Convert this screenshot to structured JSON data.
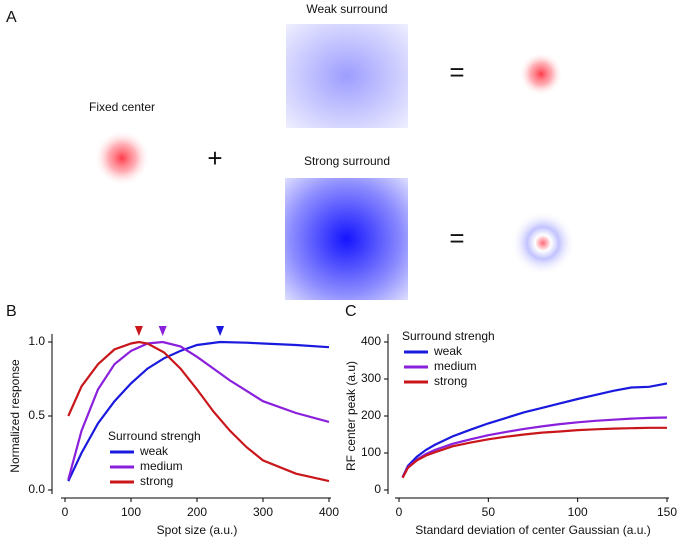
{
  "panel_a": {
    "label": "A",
    "center_label": "Fixed center",
    "weak_label": "Weak surround",
    "strong_label": "Strong surround",
    "plus": "+",
    "equals_weak": "=",
    "equals_strong": "="
  },
  "chart_data": [
    {
      "type": "line",
      "panel_label": "B",
      "xlabel": "Spot size (a.u.)",
      "ylabel": "Normalized response",
      "legend_title": "Surround strengh",
      "xlim": [
        0,
        400
      ],
      "xticks": [
        0,
        100,
        200,
        300,
        400
      ],
      "ylim": [
        0,
        1
      ],
      "yticks": [
        {
          "value": 0,
          "label": "0.0"
        },
        {
          "value": 0.5,
          "label": "0.5"
        },
        {
          "value": 1,
          "label": "1.0"
        }
      ],
      "series": [
        {
          "name": "weak",
          "color": "#1a1adf",
          "peak": 235,
          "x": [
            5,
            25,
            50,
            75,
            100,
            125,
            150,
            175,
            200,
            235,
            275,
            300,
            350,
            400
          ],
          "values": [
            0.06,
            0.25,
            0.45,
            0.6,
            0.72,
            0.82,
            0.89,
            0.94,
            0.98,
            1.0,
            0.995,
            0.99,
            0.98,
            0.965
          ]
        },
        {
          "name": "medium",
          "color": "#8a1fdc",
          "peak": 148,
          "x": [
            5,
            25,
            50,
            75,
            100,
            125,
            148,
            175,
            200,
            225,
            250,
            275,
            300,
            350,
            400
          ],
          "values": [
            0.07,
            0.4,
            0.68,
            0.85,
            0.94,
            0.99,
            1.0,
            0.97,
            0.9,
            0.82,
            0.74,
            0.67,
            0.6,
            0.52,
            0.46
          ]
        },
        {
          "name": "strong",
          "color": "#c8161b",
          "peak": 112,
          "x": [
            5,
            25,
            50,
            75,
            100,
            112,
            125,
            150,
            175,
            200,
            225,
            250,
            275,
            300,
            350,
            400
          ],
          "values": [
            0.5,
            0.7,
            0.85,
            0.95,
            0.99,
            1.0,
            0.99,
            0.93,
            0.82,
            0.68,
            0.53,
            0.4,
            0.29,
            0.2,
            0.11,
            0.06
          ]
        }
      ]
    },
    {
      "type": "line",
      "panel_label": "C",
      "xlabel": "Standard deviation of center Gaussian (a.u.)",
      "ylabel": "RF center peak (a.u)",
      "legend_title": "Surround strengh",
      "xlim": [
        0,
        150
      ],
      "xticks": [
        0,
        50,
        100,
        150
      ],
      "ylim": [
        0,
        400
      ],
      "yticks": [
        0,
        100,
        200,
        300,
        400
      ],
      "x": [
        2,
        5,
        10,
        15,
        20,
        30,
        40,
        50,
        60,
        70,
        80,
        90,
        100,
        110,
        120,
        130,
        140,
        150
      ],
      "series": [
        {
          "name": "weak",
          "color": "#1a1adf",
          "values": [
            35,
            65,
            90,
            108,
            122,
            145,
            163,
            180,
            195,
            210,
            222,
            234,
            246,
            257,
            268,
            277,
            279,
            288
          ]
        },
        {
          "name": "medium",
          "color": "#8a1fdc",
          "values": [
            35,
            62,
            82,
            97,
            108,
            125,
            137,
            148,
            157,
            165,
            172,
            178,
            183,
            187,
            190,
            193,
            195,
            196
          ]
        },
        {
          "name": "strong",
          "color": "#c8161b",
          "values": [
            33,
            60,
            80,
            93,
            102,
            118,
            128,
            137,
            144,
            150,
            155,
            158,
            162,
            164,
            166,
            167,
            168,
            168
          ]
        }
      ]
    }
  ]
}
